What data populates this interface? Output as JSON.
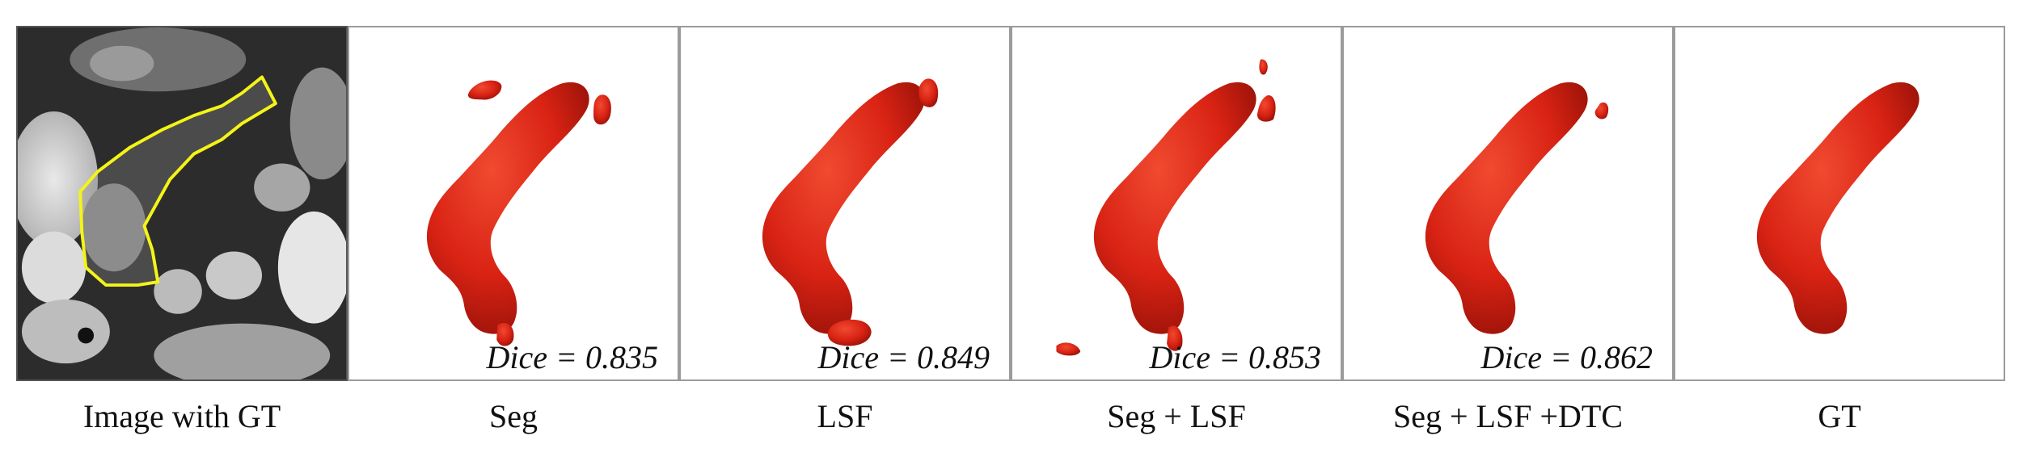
{
  "colors": {
    "organ": "#d92314",
    "organ_shadow": "#8d0f06",
    "contour": "#f4f418",
    "ct_background": "#2a2a2a"
  },
  "panels": [
    {
      "caption": "Image with GT",
      "dice": null
    },
    {
      "caption": "Seg",
      "dice": "Dice = 0.835"
    },
    {
      "caption": "LSF",
      "dice": "Dice = 0.849"
    },
    {
      "caption": "Seg + LSF",
      "dice": "Dice = 0.853"
    },
    {
      "caption": "Seg + LSF +DTC",
      "dice": "Dice = 0.862"
    },
    {
      "caption": "GT",
      "dice": null
    }
  ]
}
